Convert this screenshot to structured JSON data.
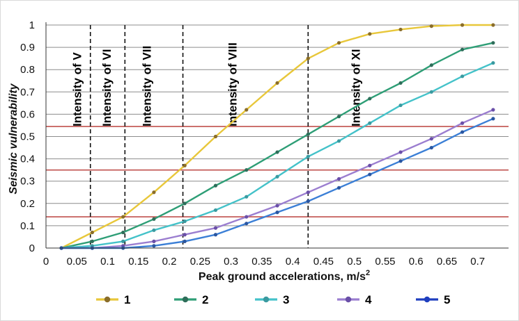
{
  "chart_data": {
    "type": "line",
    "title": "",
    "xlabel": "Peak ground accelerations, m/s",
    "xlabel_superscript": "2",
    "ylabel": "Seismic vulnerability",
    "xlim": [
      0,
      0.75
    ],
    "ylim": [
      0,
      1
    ],
    "x_ticks": [
      "0",
      "0.05",
      "0.1",
      "0.15",
      "0.2",
      "0.25",
      "0.3",
      "0.35",
      "0.4",
      "0.45",
      "0.5",
      "0.55",
      "0.6",
      "0.65",
      "0.7"
    ],
    "x_tick_values": [
      0,
      0.05,
      0.1,
      0.15,
      0.2,
      0.25,
      0.3,
      0.35,
      0.4,
      0.45,
      0.5,
      0.55,
      0.6,
      0.65,
      0.7
    ],
    "y_ticks": [
      "0",
      "0.1",
      "0.2",
      "0.3",
      "0.4",
      "0.5",
      "0.6",
      "0.7",
      "0.8",
      "0.9",
      "1"
    ],
    "y_tick_values": [
      0,
      0.1,
      0.2,
      0.3,
      0.4,
      0.5,
      0.6,
      0.7,
      0.8,
      0.9,
      1
    ],
    "grid": "horizontal",
    "legend_position": "bottom",
    "intensity_lines": [
      {
        "x": 0.072,
        "label": "Intensity of V"
      },
      {
        "x": 0.128,
        "label": "Intensity of VI"
      },
      {
        "x": 0.222,
        "label": "Intensity of VII"
      },
      {
        "x": 0.425,
        "label": "Intensity of VIII"
      }
    ],
    "intensity_end_label": "Intensity of XI",
    "threshold_lines": [
      0.14,
      0.35,
      0.545
    ],
    "threshold_color": "#c0504d",
    "x": [
      0.025,
      0.075,
      0.125,
      0.175,
      0.225,
      0.275,
      0.325,
      0.375,
      0.425,
      0.475,
      0.525,
      0.575,
      0.625,
      0.675,
      0.725
    ],
    "series": [
      {
        "name": "1",
        "color": "#e8c73a",
        "marker_color": "#8a6d2a",
        "values": [
          0.0,
          0.07,
          0.14,
          0.25,
          0.37,
          0.5,
          0.62,
          0.74,
          0.85,
          0.92,
          0.96,
          0.98,
          0.995,
          1.0,
          1.0
        ]
      },
      {
        "name": "2",
        "color": "#2e9e76",
        "marker_color": "#2e6e5a",
        "values": [
          0.0,
          0.03,
          0.07,
          0.13,
          0.2,
          0.28,
          0.35,
          0.43,
          0.51,
          0.59,
          0.67,
          0.74,
          0.82,
          0.89,
          0.92
        ]
      },
      {
        "name": "3",
        "color": "#44c2c9",
        "marker_color": "#3a9aa0",
        "values": [
          0.0,
          0.01,
          0.03,
          0.08,
          0.12,
          0.17,
          0.23,
          0.32,
          0.41,
          0.48,
          0.56,
          0.64,
          0.7,
          0.77,
          0.83
        ]
      },
      {
        "name": "4",
        "color": "#9b7ed0",
        "marker_color": "#6a4fa8",
        "values": [
          0.0,
          0.0,
          0.01,
          0.03,
          0.06,
          0.09,
          0.14,
          0.19,
          0.25,
          0.31,
          0.37,
          0.43,
          0.49,
          0.56,
          0.62
        ]
      },
      {
        "name": "5",
        "color": "#3b7fd6",
        "marker_color": "#2a56a0",
        "values": [
          0.0,
          0.0,
          0.0,
          0.01,
          0.03,
          0.06,
          0.11,
          0.16,
          0.21,
          0.27,
          0.33,
          0.39,
          0.45,
          0.52,
          0.58
        ]
      }
    ],
    "legend_series_color": "#1f3fbf"
  }
}
